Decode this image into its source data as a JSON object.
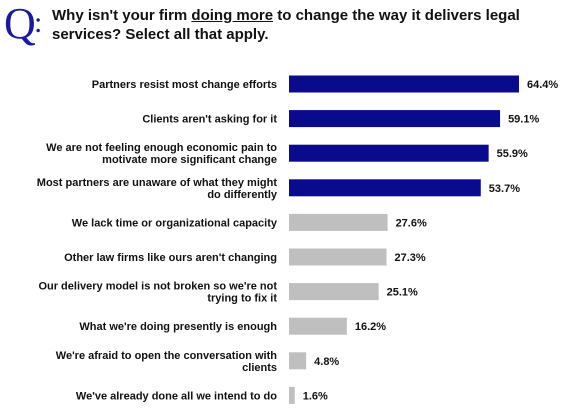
{
  "question": {
    "marker": "Q",
    "colon": ":",
    "text_before": "Why isn't your firm ",
    "text_emphasis": "doing more",
    "text_after": " to change the way it delivers legal services? Select all that apply."
  },
  "colors": {
    "highlight": "#0a0a8c",
    "other": "#bfbfbf",
    "marker": "#1a1aa0"
  },
  "chart_data": {
    "type": "bar",
    "orientation": "horizontal",
    "title": "",
    "xlabel": "",
    "ylabel": "",
    "xlim": [
      0,
      70
    ],
    "grid": false,
    "value_format": "percent",
    "categories": [
      "Partners resist most change efforts",
      "Clients aren't asking for it",
      "We are not feeling enough economic pain to motivate more significant change",
      "Most partners are unaware of what they might do differently",
      "We lack time or organizational capacity",
      "Other law firms like ours aren't changing",
      "Our delivery model is not broken so we're not trying to fix it",
      "What we're doing presently is enough",
      "We're afraid to open the conversation with clients",
      "We've already done all we intend to do"
    ],
    "label_lines": [
      [
        "Partners resist most change efforts"
      ],
      [
        "Clients aren't asking for it"
      ],
      [
        "We are not feeling enough economic pain to",
        "motivate more significant change"
      ],
      [
        "Most partners are unaware of what they might",
        "do differently"
      ],
      [
        "We lack time or organizational capacity"
      ],
      [
        "Other law firms like ours aren't changing"
      ],
      [
        "Our delivery model is not broken so we're not",
        "trying to fix it"
      ],
      [
        "What we're doing presently is enough"
      ],
      [
        "We're afraid to open the conversation with",
        "clients"
      ],
      [
        "We've already done all we intend to do"
      ]
    ],
    "values": [
      64.4,
      59.1,
      55.9,
      53.7,
      27.6,
      27.3,
      25.1,
      16.2,
      4.8,
      1.6
    ],
    "value_labels": [
      "64.4%",
      "59.1%",
      "55.9%",
      "53.7%",
      "27.6%",
      "27.3%",
      "25.1%",
      "16.2%",
      "4.8%",
      "1.6%"
    ],
    "highlighted": [
      true,
      true,
      true,
      true,
      false,
      false,
      false,
      false,
      false,
      false
    ]
  }
}
